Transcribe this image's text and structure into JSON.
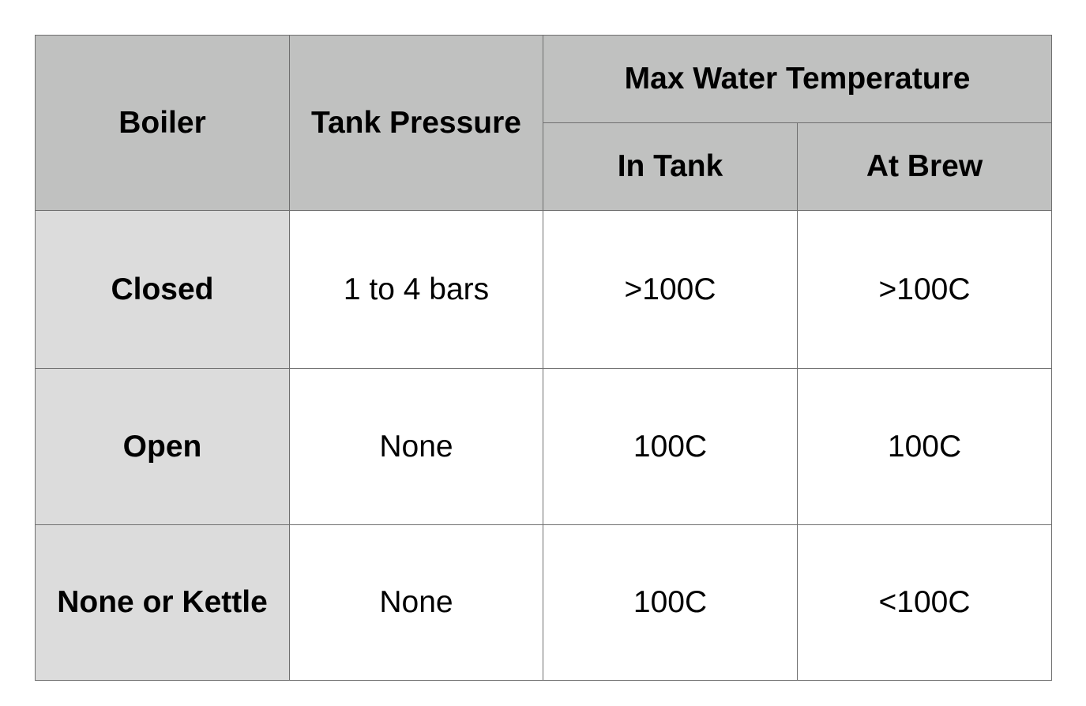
{
  "table": {
    "headers": {
      "boiler": "Boiler",
      "tank_pressure": "Tank Pressure",
      "max_water_temperature": "Max Water Temperature",
      "in_tank": "In Tank",
      "at_brew": "At Brew"
    },
    "rows": [
      {
        "boiler": "Closed",
        "tank_pressure": "1 to 4 bars",
        "in_tank": ">100C",
        "at_brew": ">100C"
      },
      {
        "boiler": "Open",
        "tank_pressure": "None",
        "in_tank": "100C",
        "at_brew": "100C"
      },
      {
        "boiler": "None or Kettle",
        "tank_pressure": "None",
        "in_tank": "100C",
        "at_brew": "<100C"
      }
    ],
    "colors": {
      "header_bg": "#c0c1c0",
      "row_label_bg": "#dcdcdc",
      "cell_bg": "#ffffff",
      "border": "#6f6f6f"
    }
  }
}
